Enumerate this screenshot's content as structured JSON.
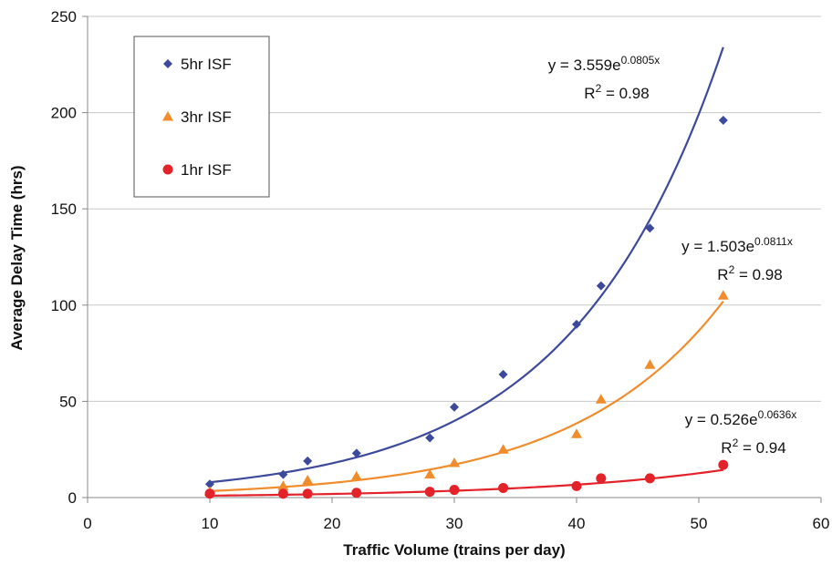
{
  "chart_data": {
    "type": "scatter",
    "xlabel": "Traffic Volume (trains per day)",
    "ylabel": "Average Delay Time (hrs)",
    "xlim": [
      0,
      60
    ],
    "ylim": [
      0,
      250
    ],
    "x_ticks": [
      "0",
      "10",
      "20",
      "30",
      "40",
      "50",
      "60"
    ],
    "y_ticks": [
      "0",
      "50",
      "100",
      "150",
      "200",
      "250"
    ],
    "grid": "horizontal",
    "legend_position": "top-left",
    "series": [
      {
        "name": "5hr ISF",
        "marker": "diamond",
        "color": "#3d4a9c",
        "x": [
          10,
          16,
          18,
          22,
          28,
          30,
          34,
          40,
          42,
          46,
          52
        ],
        "y": [
          7,
          12,
          19,
          23,
          31,
          47,
          64,
          90,
          110,
          140,
          196
        ],
        "trend": {
          "a": 3.559,
          "b": 0.0805,
          "eq_prefix": "y = 3.559e",
          "eq_exp": "0.0805x",
          "r2_prefix": "R",
          "r2_sup": "2",
          "r2_value": " = 0.98"
        }
      },
      {
        "name": "3hr ISF",
        "marker": "triangle",
        "color": "#f08c2b",
        "x": [
          10,
          16,
          18,
          22,
          28,
          30,
          34,
          40,
          42,
          46,
          52
        ],
        "y": [
          3,
          6,
          9,
          11,
          12,
          18,
          25,
          33,
          51,
          69,
          105
        ],
        "trend": {
          "a": 1.503,
          "b": 0.0811,
          "eq_prefix": "y = 1.503e",
          "eq_exp": "0.0811x",
          "r2_prefix": "R",
          "r2_sup": "2",
          "r2_value": " = 0.98"
        }
      },
      {
        "name": "1hr ISF",
        "marker": "circle",
        "color": "#e3222a",
        "x": [
          10,
          16,
          18,
          22,
          28,
          30,
          34,
          40,
          42,
          46,
          52
        ],
        "y": [
          2,
          2,
          2,
          2.5,
          3,
          4,
          5,
          6,
          10,
          10,
          17
        ],
        "trend": {
          "a": 0.526,
          "b": 0.0636,
          "eq_prefix": "y = 0.526e",
          "eq_exp": "0.0636x",
          "r2_prefix": "R",
          "r2_sup": "2",
          "r2_value": " = 0.94"
        }
      }
    ]
  }
}
